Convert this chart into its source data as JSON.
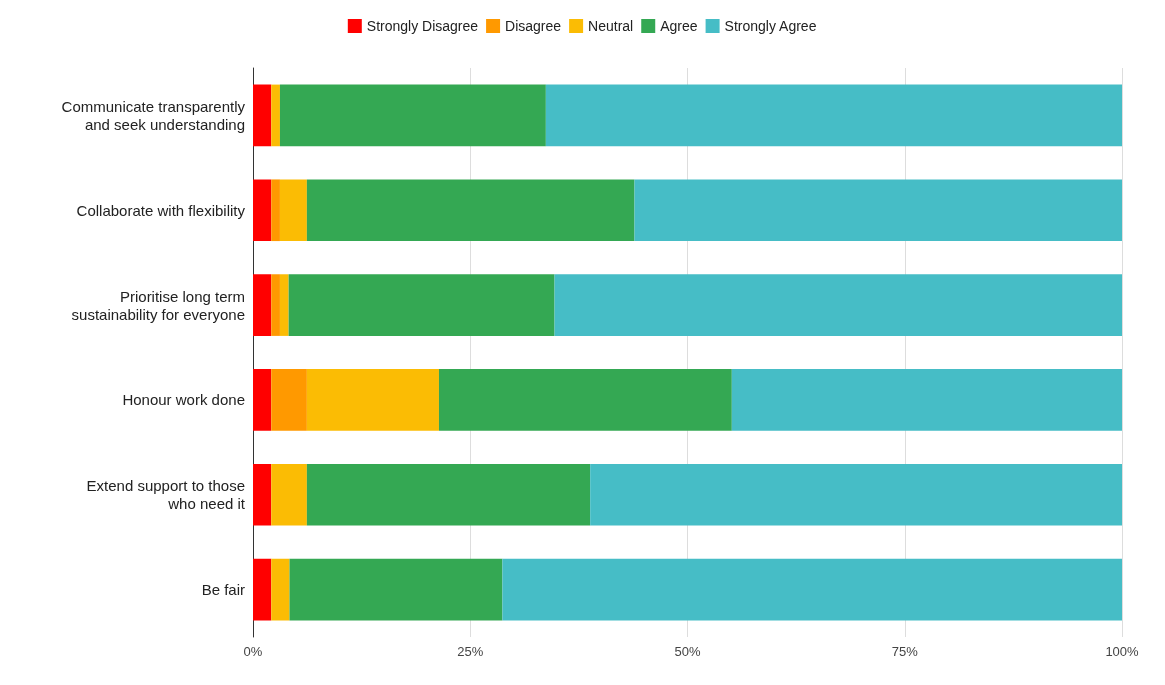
{
  "chart_data": {
    "type": "bar",
    "orientation": "horizontal",
    "stacked": true,
    "legend": "top",
    "grid": "x",
    "categories": [
      "Communicate transparently\nand seek understanding",
      "Collaborate with flexibility",
      "Prioritise long term\nsustainability for everyone",
      "Honour work done",
      "Extend support to those\nwho need it",
      "Be fair"
    ],
    "xlim": [
      0,
      100
    ],
    "xticks": [
      {
        "value": 0,
        "label": "0%"
      },
      {
        "value": 25,
        "label": "25%"
      },
      {
        "value": 50,
        "label": "50%"
      },
      {
        "value": 75,
        "label": "75%"
      },
      {
        "value": 100,
        "label": "100%"
      }
    ],
    "series": [
      {
        "name": "Strongly Disagree",
        "color": "#ff0000",
        "values": [
          2.1,
          2.1,
          2.1,
          2.1,
          2.1,
          2.1
        ]
      },
      {
        "name": "Disagree",
        "color": "#ff9900",
        "values": [
          0,
          1,
          1,
          4.1,
          0,
          0
        ]
      },
      {
        "name": "Neutral",
        "color": "#fbbc04",
        "values": [
          1,
          3.1,
          1,
          15.2,
          4.1,
          2.1
        ]
      },
      {
        "name": "Agree",
        "color": "#34a853",
        "values": [
          30.6,
          37.7,
          30.6,
          33.7,
          32.6,
          24.5
        ]
      },
      {
        "name": "Strongly Agree",
        "color": "#46bdc6",
        "values": [
          66.3,
          56.1,
          65.3,
          44.9,
          61.2,
          71.3
        ]
      }
    ]
  }
}
